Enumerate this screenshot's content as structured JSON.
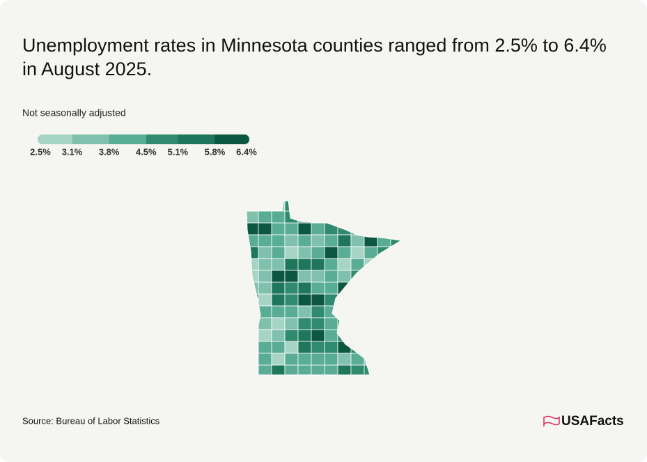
{
  "chart_data": {
    "type": "choropleth",
    "title": "Unemployment rates in Minnesota counties ranged from 2.5% to 6.4% in August 2025.",
    "subtitle": "Not seasonally adjusted",
    "legend": {
      "ticks": [
        {
          "value": 2.5,
          "label": "2.5%"
        },
        {
          "value": 3.1,
          "label": "3.1%"
        },
        {
          "value": 3.8,
          "label": "3.8%"
        },
        {
          "value": 4.5,
          "label": "4.5%"
        },
        {
          "value": 5.1,
          "label": "5.1%"
        },
        {
          "value": 5.8,
          "label": "5.8%"
        },
        {
          "value": 6.4,
          "label": "6.4%"
        }
      ],
      "colors": [
        "#a6d5c6",
        "#80c1ae",
        "#5aad95",
        "#2f8a6e",
        "#1e775b",
        "#0b5740"
      ]
    },
    "source": "Source: Bureau of Labor Statistics"
  },
  "branding": "USAFacts"
}
